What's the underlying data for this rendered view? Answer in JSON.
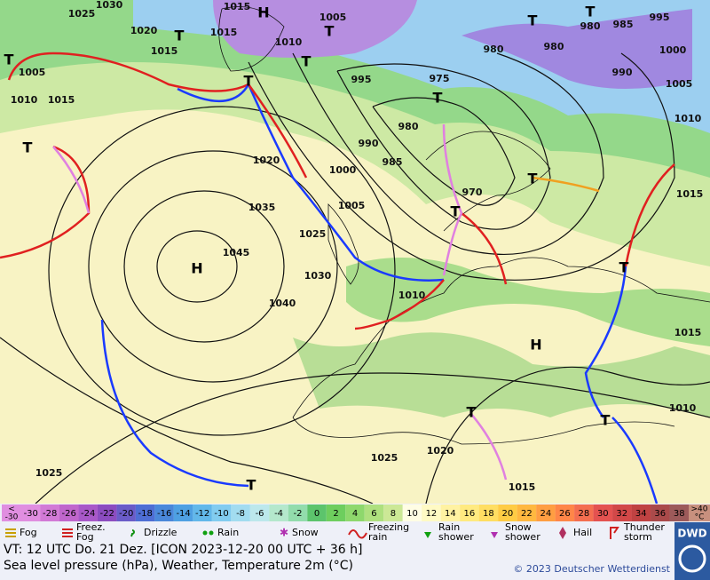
{
  "map": {
    "pressure_labels": [
      "1030",
      "1025",
      "1020",
      "1015",
      "1015",
      "1015",
      "1010",
      "1005",
      "1005",
      "1010",
      "1015",
      "995",
      "990",
      "985",
      "980",
      "975",
      "980",
      "980",
      "980",
      "985",
      "995",
      "1000",
      "990",
      "1005",
      "1010",
      "1015",
      "1020",
      "1000",
      "1005",
      "970",
      "1035",
      "1025",
      "1045",
      "1030",
      "1010",
      "1040",
      "1015",
      "1010",
      "1025",
      "1020",
      "1015",
      "1025"
    ],
    "highs": [
      "H",
      "H",
      "H"
    ],
    "lows": [
      "T",
      "T",
      "T",
      "T",
      "T",
      "T",
      "T",
      "T",
      "T",
      "T",
      "T",
      "T",
      "T",
      "T",
      "T"
    ]
  },
  "legend": {
    "scale_low": [
      "<",
      "-30"
    ],
    "scale": [
      -30,
      -28,
      -26,
      -24,
      -22,
      -20,
      -18,
      -16,
      -14,
      -12,
      -10,
      -8,
      -6,
      -4,
      -2,
      0,
      2,
      4,
      6,
      8,
      10,
      12,
      14,
      16,
      18,
      20,
      22,
      24,
      26,
      28,
      30,
      32,
      34,
      36,
      38
    ],
    "scale_colors": [
      "#e08ee0",
      "#d27ad6",
      "#c066cc",
      "#a858c8",
      "#8c4cc0",
      "#6a5cc8",
      "#4e6ed4",
      "#4a88da",
      "#4ea0e2",
      "#62b8ea",
      "#82ccf0",
      "#a2dcf0",
      "#bce8ec",
      "#b4e8cc",
      "#92dcac",
      "#5cc46c",
      "#6ece5e",
      "#8ed86c",
      "#aee07e",
      "#cce896",
      "#fffde4",
      "#fffac4",
      "#fff2a2",
      "#ffea80",
      "#ffde62",
      "#ffcc44",
      "#ffb840",
      "#ff9e42",
      "#ff8648",
      "#f46e50",
      "#e45250",
      "#d24848",
      "#c04242",
      "#aa4a4a",
      "#9c5a5a"
    ],
    "scale_high": [
      ">40",
      "°C"
    ],
    "scale_high_color": "#c8907e",
    "items": [
      [
        "Fog"
      ],
      [
        "Freez.",
        "Fog"
      ],
      [
        "Drizzle"
      ],
      [
        "Rain"
      ],
      [
        "Snow"
      ],
      [
        "Freezing",
        "rain"
      ],
      [
        "Rain",
        "shower"
      ],
      [
        "Snow",
        "shower"
      ],
      [
        "Hail"
      ],
      [
        "Thunder",
        "storm"
      ]
    ]
  },
  "footer": {
    "valid_time": "VT: 12 UTC Do.  21 Dez. [ICON 2023-12-20  00 UTC + 36 h]",
    "description": "Sea level pressure (hPa), Weather, Temperature 2m (°C)",
    "copyright": "© 2023 Deutscher Wetterdienst",
    "logo": "DWD"
  }
}
